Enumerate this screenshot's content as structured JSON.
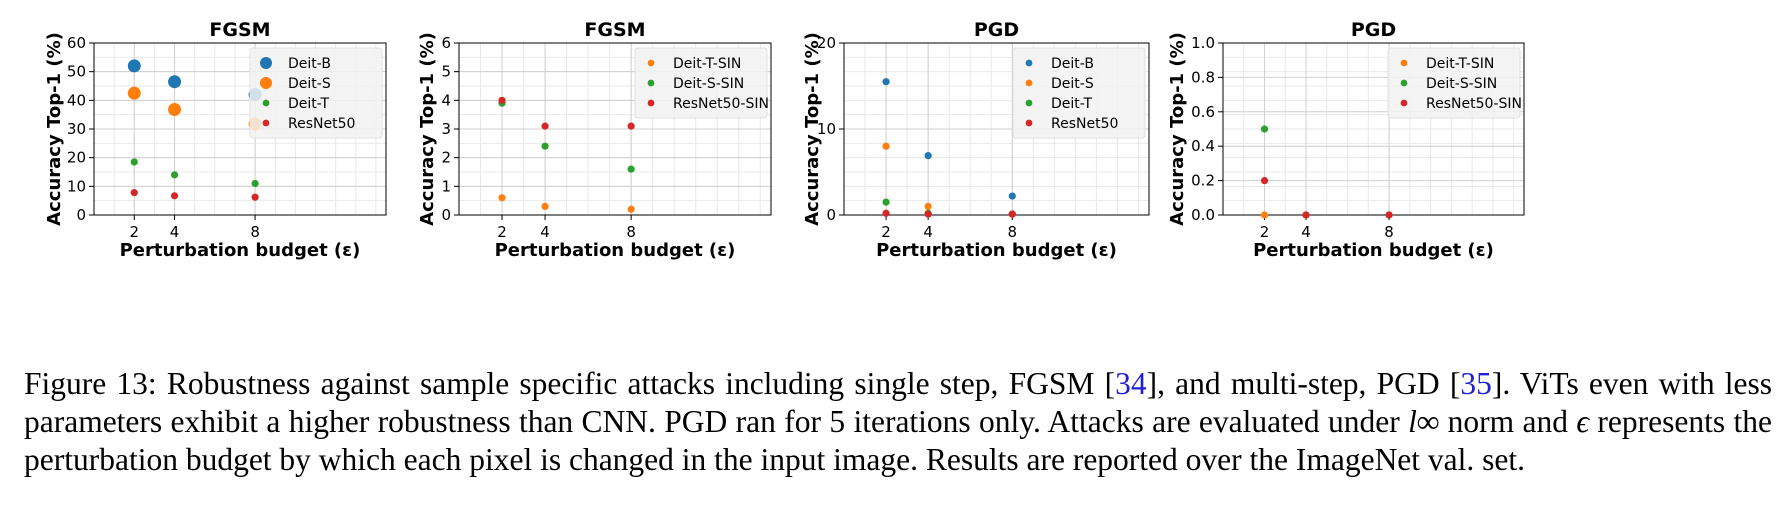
{
  "chart_data": [
    {
      "type": "scatter",
      "title": "FGSM",
      "xlabel": "Perturbation budget (ε)",
      "ylabel": "Accuracy Top-1 (%)",
      "x_categories": [
        "2",
        "4",
        "8"
      ],
      "ylim": [
        0,
        60
      ],
      "yticks": [
        "0",
        "10",
        "20",
        "30",
        "40",
        "50",
        "60"
      ],
      "grid": true,
      "legend_position": "top-right",
      "series": [
        {
          "name": "Deit-B",
          "color": "#1f77b4",
          "marker": "large",
          "values": [
            52,
            46.5,
            42
          ]
        },
        {
          "name": "Deit-S",
          "color": "#ff7f0e",
          "marker": "large",
          "values": [
            42.5,
            36.8,
            31.7
          ]
        },
        {
          "name": "Deit-T",
          "color": "#2ca02c",
          "marker": "small",
          "values": [
            18.5,
            14,
            11
          ]
        },
        {
          "name": "ResNet50",
          "color": "#d62728",
          "marker": "small",
          "values": [
            7.8,
            6.7,
            6.2
          ]
        }
      ]
    },
    {
      "type": "scatter",
      "title": "FGSM",
      "xlabel": "Perturbation budget (ε)",
      "ylabel": "Accuracy Top-1 (%)",
      "x_categories": [
        "2",
        "4",
        "8"
      ],
      "ylim": [
        0,
        6
      ],
      "yticks": [
        "0",
        "1",
        "2",
        "3",
        "4",
        "5",
        "6"
      ],
      "grid": true,
      "legend_position": "top-right",
      "series": [
        {
          "name": "Deit-T-SIN",
          "color": "#ff7f0e",
          "marker": "small",
          "values": [
            0.6,
            0.3,
            0.2
          ]
        },
        {
          "name": "Deit-S-SIN",
          "color": "#2ca02c",
          "marker": "small",
          "values": [
            3.9,
            2.4,
            1.6
          ]
        },
        {
          "name": "ResNet50-SIN",
          "color": "#d62728",
          "marker": "small",
          "values": [
            4.0,
            3.1,
            3.1
          ]
        }
      ]
    },
    {
      "type": "scatter",
      "title": "PGD",
      "xlabel": "Perturbation budget (ε)",
      "ylabel": "Accuracy Top-1 (%)",
      "x_categories": [
        "2",
        "4",
        "8"
      ],
      "ylim": [
        0,
        20
      ],
      "yticks": [
        "0",
        "10",
        "20"
      ],
      "grid": true,
      "legend_position": "top-right",
      "series": [
        {
          "name": "Deit-B",
          "color": "#1f77b4",
          "marker": "small",
          "values": [
            15.5,
            6.9,
            2.2
          ]
        },
        {
          "name": "Deit-S",
          "color": "#ff7f0e",
          "marker": "small",
          "values": [
            8.0,
            1.0,
            0.1
          ]
        },
        {
          "name": "Deit-T",
          "color": "#2ca02c",
          "marker": "small",
          "values": [
            1.5,
            0.2,
            0.1
          ]
        },
        {
          "name": "ResNet50",
          "color": "#d62728",
          "marker": "small",
          "values": [
            0.2,
            0.1,
            0.1
          ]
        }
      ]
    },
    {
      "type": "scatter",
      "title": "PGD",
      "xlabel": "Perturbation budget (ε)",
      "ylabel": "Accuracy Top-1 (%)",
      "x_categories": [
        "2",
        "4",
        "8"
      ],
      "ylim": [
        0,
        1.0
      ],
      "yticks": [
        "0.0",
        "0.2",
        "0.4",
        "0.6",
        "0.8",
        "1.0"
      ],
      "grid": true,
      "legend_position": "top-right",
      "series": [
        {
          "name": "Deit-T-SIN",
          "color": "#ff7f0e",
          "marker": "small",
          "values": [
            0.0,
            0.0,
            0.0
          ]
        },
        {
          "name": "Deit-S-SIN",
          "color": "#2ca02c",
          "marker": "small",
          "values": [
            0.5,
            0.0,
            0.0
          ]
        },
        {
          "name": "ResNet50-SIN",
          "color": "#d62728",
          "marker": "small",
          "values": [
            0.2,
            0.0,
            0.0
          ]
        }
      ]
    }
  ],
  "caption": {
    "prefix": "Figure 13: Robustness against sample specific attacks including single step, FGSM [",
    "ref1": "34",
    "mid1": "], and multi-step, PGD [",
    "ref2": "35",
    "mid2": "]. ViTs even with less parameters exhibit a higher robustness than CNN. PGD ran for 5 iterations only. Attacks are evaluated under ",
    "math1": "l∞",
    "mid3": " norm and ",
    "math2": "ϵ",
    "suffix": " represents the perturbation budget by which each pixel is changed in the input image. Results are reported over the ImageNet val. set."
  }
}
